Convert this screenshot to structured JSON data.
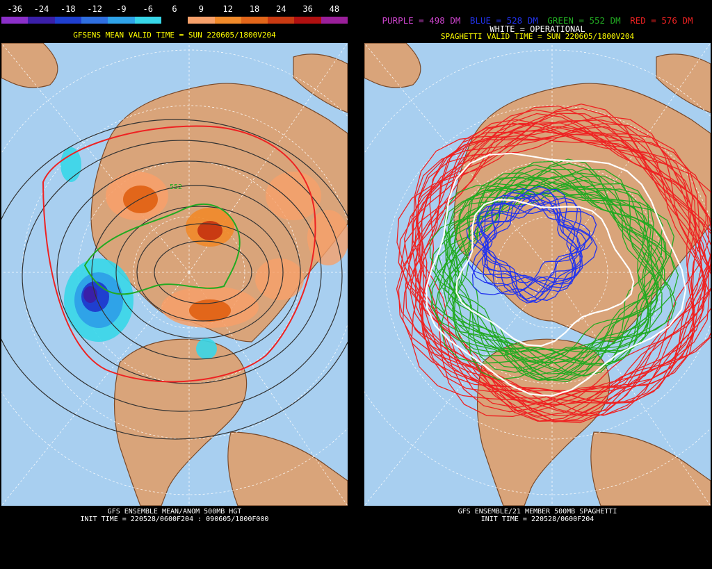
{
  "left_panel": {
    "colorbar": {
      "labels": [
        "-36",
        "-24",
        "-18",
        "-12",
        "-9",
        "-6",
        "6",
        "9",
        "12",
        "18",
        "24",
        "36",
        "48"
      ],
      "colors": [
        "#8b2fc9",
        "#3a1fa8",
        "#1f3fcf",
        "#2f6fe0",
        "#2fa3e8",
        "#37d6e8",
        "#000000",
        "#f6a06a",
        "#f08a2a",
        "#e2661a",
        "#c93a12",
        "#b01010",
        "#9a1f9a"
      ]
    },
    "valid_time": "GFSENS MEAN VALID TIME = SUN 220605/1800V204",
    "contour_label": "552",
    "footer_line1": "GFS ENSEMBLE MEAN/ANOM 500MB HGT",
    "footer_line2": "INIT TIME = 220528/0600F204 : 090605/1800F000"
  },
  "right_panel": {
    "legend": [
      {
        "text": "PURPLE = 498 DM",
        "color": "#cc44cc"
      },
      {
        "text": "BLUE = 528 DM",
        "color": "#2233ee"
      },
      {
        "text": "GREEN = 552 DM",
        "color": "#22aa22"
      },
      {
        "text": "RED = 576 DM",
        "color": "#ee2222"
      }
    ],
    "operational_legend": "WHITE = OPERATIONAL",
    "valid_time": "SPAGHETTI VALID TIME = SUN 220605/1800V204",
    "footer_line1": "GFS ENSEMBLE/21 MEMBER 500MB SPAGHETTI",
    "footer_line2": "INIT TIME = 220528/0600F204"
  },
  "map_colors": {
    "ocean": "#a8cff0",
    "land": "#d9a47a",
    "borders": "#7a4a2a",
    "graticule": "#ffffff",
    "height_contours": "#333333",
    "contour_576": "#ee2222",
    "contour_552": "#22aa22"
  }
}
